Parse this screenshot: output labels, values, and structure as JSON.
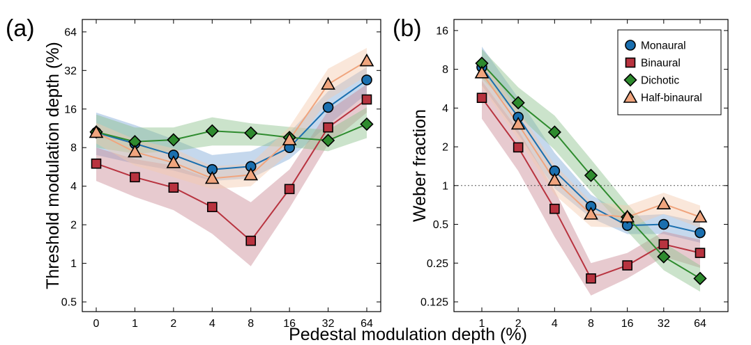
{
  "figure": {
    "shared_xlabel": "Pedestal modulation depth (%)"
  },
  "chart_data": [
    {
      "type": "line",
      "panel_label": "(a)",
      "xlabel": "",
      "ylabel": "Threshold modulation depth (%)",
      "x_scale": "categorical",
      "y_scale": "log2",
      "categories": [
        "0",
        "1",
        "2",
        "4",
        "8",
        "16",
        "32",
        "64"
      ],
      "yticks": [
        0.5,
        1,
        2,
        4,
        8,
        16,
        32,
        64
      ],
      "ytick_labels": [
        "0.5",
        "1",
        "2",
        "4",
        "8",
        "16",
        "32",
        "64"
      ],
      "ylim": [
        0.42,
        80
      ],
      "legend": "none",
      "grid": false,
      "series": [
        {
          "name": "Monaural",
          "color": "#1a6faf",
          "band_color": "#7fa9d8",
          "marker": "circle",
          "values": [
            10.5,
            8.6,
            7.0,
            5.4,
            5.7,
            8.0,
            16.5,
            27.0
          ],
          "lower": [
            7.0,
            6.0,
            5.3,
            4.4,
            4.6,
            6.5,
            12.0,
            21.0
          ],
          "upper": [
            15.0,
            12.0,
            9.3,
            7.0,
            7.5,
            10.5,
            22.0,
            34.0
          ]
        },
        {
          "name": "Binaural",
          "color": "#b8333f",
          "band_color": "#c98a95",
          "marker": "square",
          "values": [
            6.0,
            4.7,
            3.9,
            2.75,
            1.5,
            3.8,
            11.5,
            19.0
          ],
          "lower": [
            4.4,
            3.3,
            2.6,
            1.7,
            0.95,
            2.7,
            8.5,
            15.0
          ],
          "upper": [
            8.0,
            6.5,
            5.8,
            4.5,
            3.0,
            5.4,
            15.5,
            25.0
          ]
        },
        {
          "name": "Dichotic",
          "color": "#2e8b2e",
          "band_color": "#8cc08c",
          "marker": "diamond",
          "values": [
            10.6,
            8.9,
            9.2,
            10.8,
            10.4,
            9.6,
            9.1,
            12.2
          ],
          "lower": [
            8.0,
            7.2,
            7.5,
            8.3,
            8.3,
            8.1,
            7.5,
            9.5
          ],
          "upper": [
            14.5,
            11.5,
            11.5,
            13.8,
            12.4,
            11.6,
            11.0,
            16.5
          ]
        },
        {
          "name": "Half-binaural",
          "color": "#f0a57e",
          "band_color": "#f3c9ad",
          "marker": "triangle",
          "values": [
            10.5,
            7.4,
            6.1,
            4.6,
            4.9,
            9.2,
            25.0,
            38.0
          ],
          "lower": [
            8.6,
            5.8,
            4.7,
            3.8,
            4.0,
            7.3,
            19.0,
            29.0
          ],
          "upper": [
            12.5,
            9.3,
            7.9,
            5.7,
            6.0,
            11.6,
            33.0,
            48.0
          ]
        }
      ]
    },
    {
      "type": "line",
      "panel_label": "(b)",
      "xlabel": "",
      "ylabel": "Weber fraction",
      "x_scale": "categorical",
      "y_scale": "log2",
      "categories": [
        "1",
        "2",
        "4",
        "8",
        "16",
        "32",
        "64"
      ],
      "yticks": [
        0.125,
        0.25,
        0.5,
        1,
        2,
        4,
        8,
        16
      ],
      "ytick_labels": [
        "0.125",
        "0.25",
        "0.5",
        "1",
        "2",
        "4",
        "8",
        "16"
      ],
      "ylim": [
        0.105,
        19.5
      ],
      "reference_line": {
        "y": 1,
        "style": "dotted"
      },
      "legend": "top-right",
      "grid": false,
      "series": [
        {
          "name": "Monaural",
          "color": "#1a6faf",
          "band_color": "#7fa9d8",
          "marker": "circle",
          "values": [
            8.3,
            3.4,
            1.3,
            0.69,
            0.49,
            0.5,
            0.43
          ],
          "lower": [
            6.0,
            2.5,
            0.95,
            0.56,
            0.42,
            0.42,
            0.36
          ],
          "upper": [
            12.0,
            4.8,
            1.8,
            0.85,
            0.58,
            0.6,
            0.52
          ]
        },
        {
          "name": "Binaural",
          "color": "#b8333f",
          "band_color": "#c98a95",
          "marker": "square",
          "values": [
            4.8,
            1.98,
            0.66,
            0.19,
            0.24,
            0.35,
            0.3
          ],
          "lower": [
            3.3,
            1.3,
            0.4,
            0.14,
            0.19,
            0.28,
            0.23
          ],
          "upper": [
            6.5,
            2.7,
            0.92,
            0.25,
            0.3,
            0.44,
            0.38
          ]
        },
        {
          "name": "Dichotic",
          "color": "#2e8b2e",
          "band_color": "#8cc08c",
          "marker": "diamond",
          "values": [
            8.9,
            4.4,
            2.6,
            1.2,
            0.57,
            0.28,
            0.19
          ],
          "lower": [
            6.8,
            3.5,
            1.9,
            0.9,
            0.44,
            0.22,
            0.15
          ],
          "upper": [
            11.5,
            5.8,
            3.5,
            1.6,
            0.72,
            0.36,
            0.24
          ]
        },
        {
          "name": "Half-binaural",
          "color": "#f0a57e",
          "band_color": "#f3c9ad",
          "marker": "triangle",
          "values": [
            7.5,
            3.0,
            1.1,
            0.6,
            0.57,
            0.72,
            0.57
          ],
          "lower": [
            5.8,
            2.3,
            0.85,
            0.48,
            0.47,
            0.6,
            0.47
          ],
          "upper": [
            9.5,
            3.9,
            1.45,
            0.75,
            0.7,
            0.88,
            0.7
          ]
        }
      ]
    }
  ]
}
